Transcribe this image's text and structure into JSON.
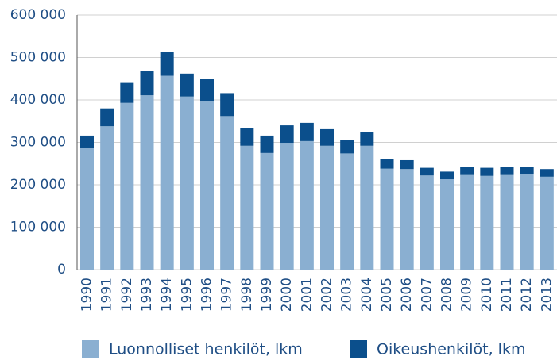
{
  "chart_data": {
    "type": "stacked_bar",
    "categories": [
      "1990",
      "1991",
      "1992",
      "1993",
      "1994",
      "1995",
      "1996",
      "1997",
      "1998",
      "1999",
      "2000",
      "2001",
      "2002",
      "2003",
      "2004",
      "2005",
      "2006",
      "2007",
      "2008",
      "2009",
      "2010",
      "2011",
      "2012",
      "2013"
    ],
    "series": [
      {
        "name": "Luonnolliset henkilöt, lkm",
        "color": "#8aafd1",
        "values": [
          286000,
          338000,
          393000,
          411000,
          457000,
          408000,
          397000,
          362000,
          292000,
          275000,
          299000,
          303000,
          292000,
          274000,
          292000,
          238000,
          237000,
          222000,
          213000,
          223000,
          221000,
          223000,
          225000,
          219000
        ]
      },
      {
        "name": "Oikeushenkilöt, lkm",
        "color": "#0b4f8c",
        "values": [
          30000,
          42000,
          47000,
          57000,
          57000,
          54000,
          53000,
          54000,
          42000,
          41000,
          41000,
          43000,
          39000,
          32000,
          33000,
          23000,
          21000,
          18000,
          18000,
          19000,
          19000,
          19000,
          17000,
          18000
        ]
      }
    ],
    "ylim": [
      0,
      600000
    ],
    "yticks": [
      0,
      {
        "value": 100000,
        "label": "100 000"
      },
      {
        "value": 200000,
        "label": "200 000"
      },
      {
        "value": 300000,
        "label": "300 000"
      },
      {
        "value": 400000,
        "label": "400 000"
      },
      {
        "value": 500000,
        "label": "500 000"
      },
      {
        "value": 600000,
        "label": "600 000"
      }
    ],
    "grid": true,
    "legend": "bottom"
  }
}
